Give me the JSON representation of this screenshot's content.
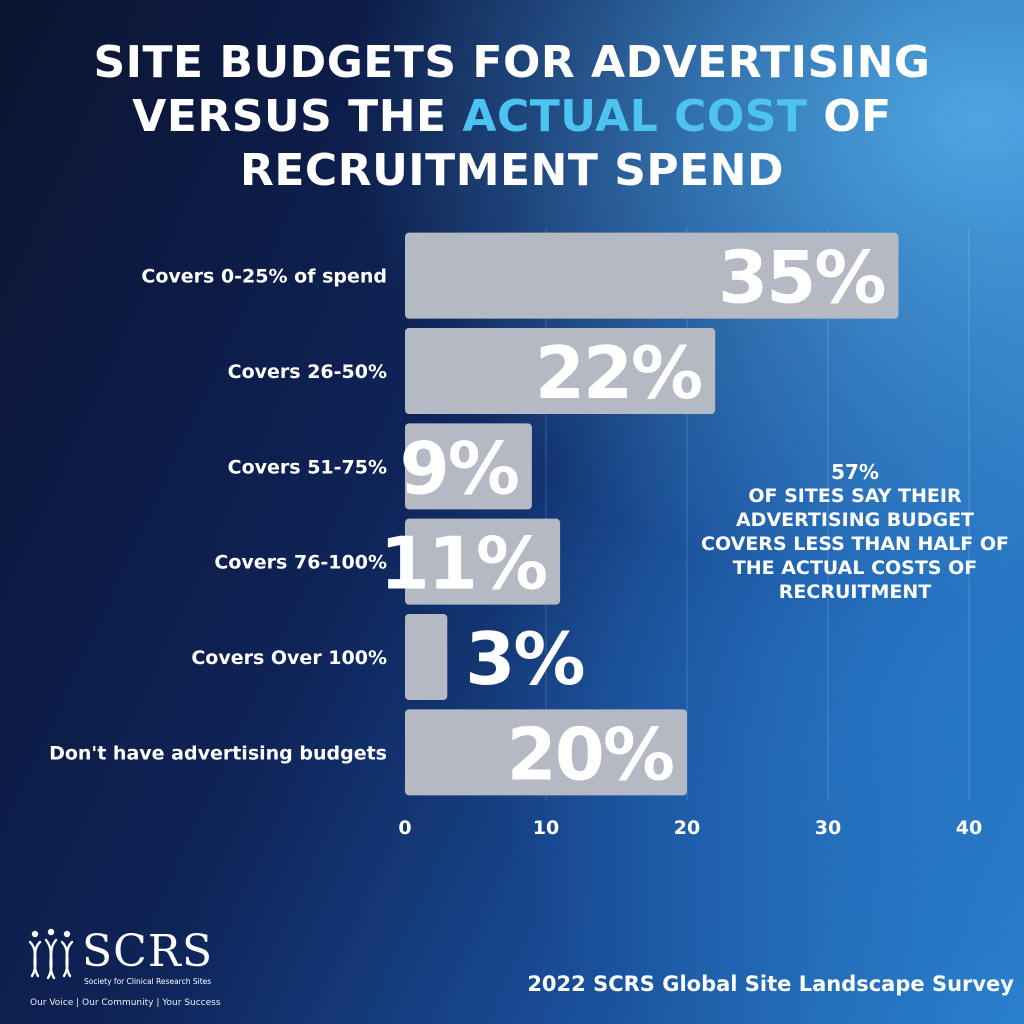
{
  "title": {
    "line1": "SITE BUDGETS FOR ADVERTISING",
    "line2_pre": "VERSUS THE ",
    "line2_highlight": "ACTUAL COST",
    "line2_post": " OF",
    "line3": "RECRUITMENT SPEND"
  },
  "colors": {
    "highlight": "#4cc3f0",
    "bar": "#b4b9c4",
    "text": "#ffffff"
  },
  "chart_data": {
    "type": "bar",
    "orientation": "horizontal",
    "categories": [
      "Covers 0-25% of spend",
      "Covers 26-50%",
      "Covers 51-75%",
      "Covers 76-100%",
      "Covers Over 100%",
      "Don't have advertising budgets"
    ],
    "values": [
      35,
      22,
      9,
      11,
      3,
      20
    ],
    "value_labels": [
      "35%",
      "22%",
      "9%",
      "11%",
      "3%",
      "20%"
    ],
    "xlim": [
      0,
      40
    ],
    "xticks": [
      0,
      10,
      20,
      30,
      40
    ],
    "grid": true,
    "legend": "none"
  },
  "callout": {
    "pct": "57%",
    "text": "OF SITES SAY THEIR ADVERTISING BUDGET COVERS LESS THAN HALF OF THE ACTUAL COSTS OF RECRUITMENT"
  },
  "logo": {
    "abbr": "SCRS",
    "full_name": "Society for Clinical Research Sites",
    "tagline": "Our Voice | Our Community | Your Success",
    "icon": "scrs-people-icon"
  },
  "footer": {
    "source": "2022 SCRS Global Site Landscape Survey"
  }
}
